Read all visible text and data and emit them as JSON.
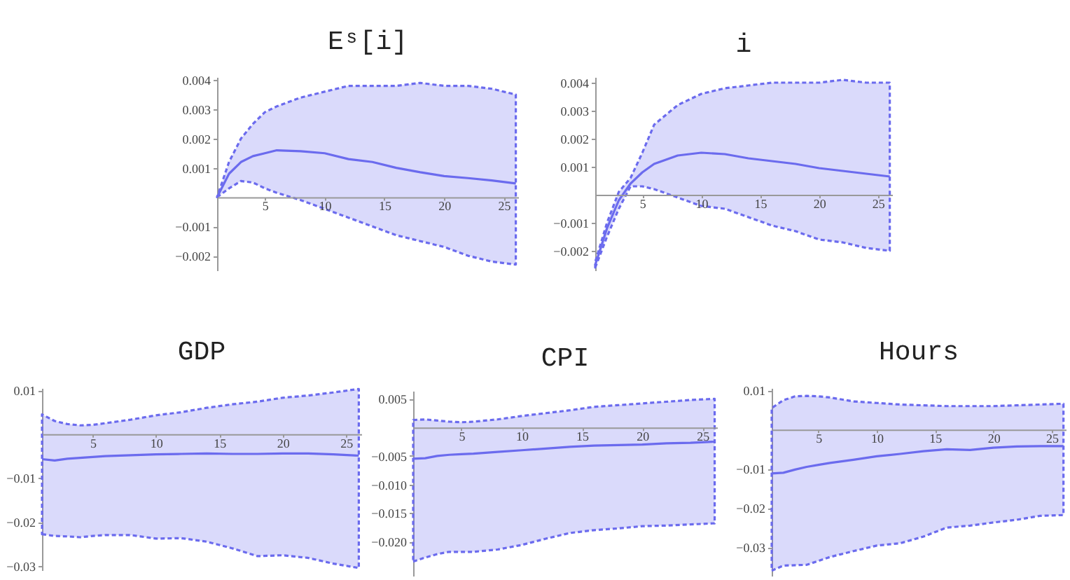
{
  "chart_data": [
    {
      "type": "line",
      "title": "Eˢ[i]",
      "x": [
        1,
        2,
        3,
        4,
        5,
        6,
        8,
        10,
        12,
        14,
        16,
        18,
        20,
        22,
        24,
        26
      ],
      "xlim": [
        1,
        26.2
      ],
      "ylim": [
        -0.0025,
        0.0041
      ],
      "xticks": [
        5,
        10,
        15,
        20,
        25
      ],
      "yticks": [
        -0.002,
        -0.001,
        0.001,
        0.002,
        0.003,
        0.004
      ],
      "series": [
        {
          "color": "#6b6bee",
          "values": [
            0,
            0.0008,
            0.0012,
            0.0014,
            0.0015,
            0.0016,
            0.00157,
            0.0015,
            0.0013,
            0.0012,
            0.001,
            0.00085,
            0.00072,
            0.00065,
            0.00057,
            0.00047
          ],
          "lower": [
            0,
            0.0003,
            0.00055,
            0.0005,
            0.0003,
            0.00015,
            -0.0001,
            -0.0004,
            -0.0007,
            -0.001,
            -0.0013,
            -0.0015,
            -0.0017,
            -0.002,
            -0.0022,
            -0.0023
          ],
          "upper": [
            0,
            0.0012,
            0.002,
            0.0025,
            0.0029,
            0.0031,
            0.0034,
            0.0036,
            0.0038,
            0.0038,
            0.0038,
            0.0039,
            0.0038,
            0.0038,
            0.0037,
            0.0035
          ]
        }
      ]
    },
    {
      "type": "line",
      "title": "i",
      "x": [
        1,
        2,
        3,
        4,
        5,
        6,
        8,
        10,
        12,
        14,
        16,
        18,
        20,
        22,
        24,
        26
      ],
      "xlim": [
        1,
        26.2
      ],
      "ylim": [
        -0.0027,
        0.0042
      ],
      "xticks": [
        5,
        10,
        15,
        20,
        25
      ],
      "yticks": [
        -0.002,
        -0.001,
        0.001,
        0.002,
        0.003,
        0.004
      ],
      "series": [
        {
          "color": "#6b6bee",
          "values": [
            -0.0025,
            -0.0012,
            -0.0002,
            0.0004,
            0.0008,
            0.0011,
            0.0014,
            0.0015,
            0.00145,
            0.0013,
            0.0012,
            0.0011,
            0.00095,
            0.00085,
            0.00075,
            0.00065
          ],
          "lower": [
            -0.0026,
            -0.0015,
            -0.0005,
            0.0003,
            0.0003,
            0.0002,
            -0.0001,
            -0.0004,
            -0.0005,
            -0.0008,
            -0.0011,
            -0.0013,
            -0.0016,
            -0.0017,
            -0.0019,
            -0.002
          ],
          "upper": [
            -0.0024,
            -0.001,
            0.0001,
            0.0006,
            0.0015,
            0.0025,
            0.0032,
            0.0036,
            0.0038,
            0.0039,
            0.004,
            0.004,
            0.004,
            0.0041,
            0.004,
            0.004
          ]
        }
      ]
    },
    {
      "type": "line",
      "title": "GDP",
      "x": [
        1,
        2,
        3,
        4,
        5,
        6,
        8,
        10,
        12,
        14,
        16,
        18,
        20,
        22,
        24,
        26
      ],
      "xlim": [
        1,
        26.2
      ],
      "ylim": [
        -0.031,
        0.0105
      ],
      "xticks": [
        5,
        10,
        15,
        20,
        25
      ],
      "yticks": [
        -0.03,
        -0.02,
        -0.01,
        0.01
      ],
      "series": [
        {
          "color": "#6b6bee",
          "values": [
            -0.0057,
            -0.006,
            -0.0056,
            -0.0054,
            -0.0052,
            -0.005,
            -0.0048,
            -0.0046,
            -0.0045,
            -0.0044,
            -0.0045,
            -0.0045,
            -0.0044,
            -0.0044,
            -0.0046,
            -0.0049
          ],
          "lower": [
            -0.0228,
            -0.0232,
            -0.0233,
            -0.0235,
            -0.0232,
            -0.023,
            -0.023,
            -0.0238,
            -0.0237,
            -0.0245,
            -0.026,
            -0.0278,
            -0.0276,
            -0.0282,
            -0.0295,
            -0.0305
          ],
          "upper": [
            0.0045,
            0.003,
            0.0023,
            0.002,
            0.0021,
            0.0025,
            0.0033,
            0.0043,
            0.005,
            0.006,
            0.0068,
            0.0074,
            0.0083,
            0.0088,
            0.0095,
            0.0103
          ]
        }
      ]
    },
    {
      "type": "line",
      "title": "CPI",
      "x": [
        1,
        2,
        3,
        4,
        5,
        6,
        8,
        10,
        12,
        14,
        16,
        18,
        20,
        22,
        24,
        26
      ],
      "xlim": [
        1,
        26.2
      ],
      "ylim": [
        -0.026,
        0.0064
      ],
      "xticks": [
        5,
        10,
        15,
        20,
        25
      ],
      "yticks": [
        {
          "value": -0.02,
          "label": "−0.020"
        },
        -0.015,
        {
          "value": -0.01,
          "label": "−0.010"
        },
        -0.005,
        0.005
      ],
      "series": [
        {
          "color": "#6b6bee",
          "values": [
            -0.0055,
            -0.0054,
            -0.005,
            -0.0048,
            -0.0047,
            -0.0046,
            -0.0043,
            -0.004,
            -0.0037,
            -0.0034,
            -0.0032,
            -0.0031,
            -0.003,
            -0.0028,
            -0.0027,
            -0.0025
          ],
          "lower": [
            -0.0235,
            -0.0228,
            -0.0222,
            -0.0218,
            -0.0218,
            -0.0218,
            -0.0214,
            -0.0206,
            -0.0195,
            -0.0185,
            -0.018,
            -0.0177,
            -0.0173,
            -0.0172,
            -0.017,
            -0.0168
          ],
          "upper": [
            0.0013,
            0.0014,
            0.0012,
            0.001,
            0.0009,
            0.001,
            0.0014,
            0.002,
            0.0025,
            0.003,
            0.0036,
            0.0039,
            0.0042,
            0.0045,
            0.0048,
            0.005
          ]
        }
      ]
    },
    {
      "type": "line",
      "title": "Hours",
      "x": [
        1,
        2,
        3,
        4,
        5,
        6,
        8,
        10,
        12,
        14,
        16,
        18,
        20,
        22,
        24,
        26
      ],
      "xlim": [
        1,
        26.2
      ],
      "ylim": [
        -0.0373,
        0.0106
      ],
      "xticks": [
        5,
        10,
        15,
        20,
        25
      ],
      "yticks": [
        -0.03,
        -0.02,
        -0.01,
        0.01
      ],
      "series": [
        {
          "color": "#6b6bee",
          "values": [
            -0.0112,
            -0.011,
            -0.0102,
            -0.0095,
            -0.009,
            -0.0085,
            -0.0077,
            -0.0068,
            -0.0062,
            -0.0055,
            -0.005,
            -0.0052,
            -0.0046,
            -0.0043,
            -0.0042,
            -0.0042
          ],
          "lower": [
            -0.036,
            -0.0347,
            -0.0346,
            -0.0345,
            -0.0335,
            -0.0325,
            -0.031,
            -0.0296,
            -0.029,
            -0.0273,
            -0.025,
            -0.0245,
            -0.0237,
            -0.023,
            -0.022,
            -0.0218
          ],
          "upper": [
            0.0055,
            0.0075,
            0.0085,
            0.0086,
            0.0085,
            0.0082,
            0.0072,
            0.0068,
            0.0064,
            0.0062,
            0.006,
            0.006,
            0.006,
            0.0062,
            0.0064,
            0.0066
          ]
        }
      ]
    }
  ]
}
